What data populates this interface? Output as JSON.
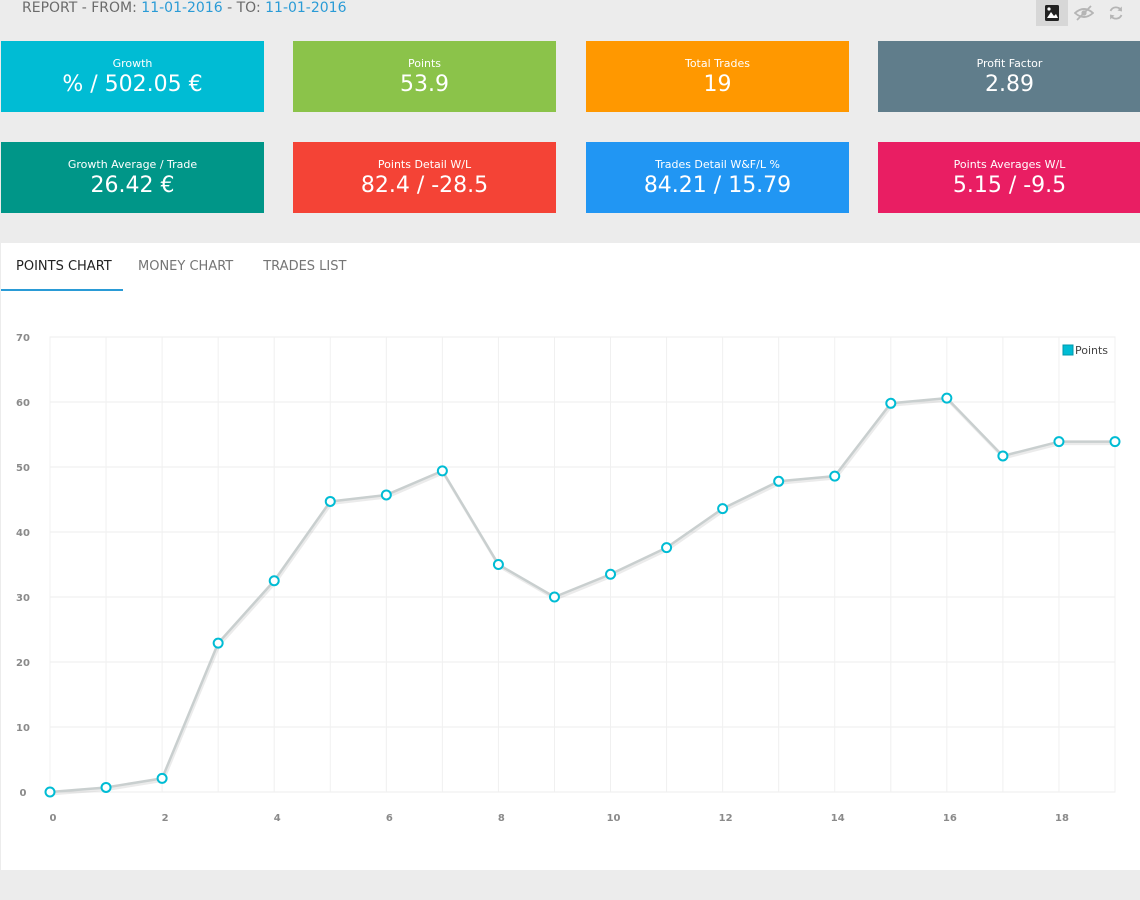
{
  "header": {
    "report_prefix": "REPORT - FROM: ",
    "from_date": "11-01-2016",
    "to_prefix": " - TO: ",
    "to_date": "11-01-2016"
  },
  "toolbar": {
    "items": [
      {
        "icon": "image-export-icon",
        "active": true
      },
      {
        "icon": "hide-icon",
        "active": false
      },
      {
        "icon": "refresh-icon",
        "active": false
      }
    ]
  },
  "tiles": [
    {
      "label": "Growth",
      "value": "% / 502.05 €",
      "color": "#00bcd4"
    },
    {
      "label": "Points",
      "value": "53.9",
      "color": "#8bc34a"
    },
    {
      "label": "Total Trades",
      "value": "19",
      "color": "#ff9800"
    },
    {
      "label": "Profit Factor",
      "value": "2.89",
      "color": "#607d8b"
    },
    {
      "label": "Growth Average / Trade",
      "value": "26.42 €",
      "color": "#009688"
    },
    {
      "label": "Points Detail W/L",
      "value": "82.4 / -28.5",
      "color": "#f44336"
    },
    {
      "label": "Trades Detail W&F/L %",
      "value": "84.21 / 15.79",
      "color": "#2196f3"
    },
    {
      "label": "Points Averages W/L",
      "value": "5.15 / -9.5",
      "color": "#e91e63"
    }
  ],
  "tabs": [
    {
      "label": "POINTS CHART",
      "active": true
    },
    {
      "label": "MONEY CHART",
      "active": false
    },
    {
      "label": "TRADES LIST",
      "active": false
    }
  ],
  "chart_data": {
    "type": "line",
    "x": [
      0,
      1,
      2,
      3,
      4,
      5,
      6,
      7,
      8,
      9,
      10,
      11,
      12,
      13,
      14,
      15,
      16,
      17,
      18,
      19
    ],
    "series": [
      {
        "name": "Points",
        "values": [
          0,
          0.7,
          2.1,
          22.9,
          32.5,
          44.7,
          45.7,
          49.4,
          35.0,
          30.0,
          33.5,
          37.6,
          43.6,
          47.8,
          48.6,
          59.8,
          60.6,
          51.7,
          53.9,
          53.9
        ],
        "color": "#00bcd4",
        "line_color": "#c9cfcf"
      }
    ],
    "xticks": [
      0,
      2,
      4,
      6,
      8,
      10,
      12,
      14,
      16,
      18
    ],
    "yticks": [
      0,
      10,
      20,
      30,
      40,
      50,
      60,
      70
    ],
    "xlim": [
      0,
      19
    ],
    "ylim": [
      0,
      70
    ],
    "grid": true,
    "legend": "top-right",
    "title": "",
    "xlabel": "",
    "ylabel": ""
  }
}
